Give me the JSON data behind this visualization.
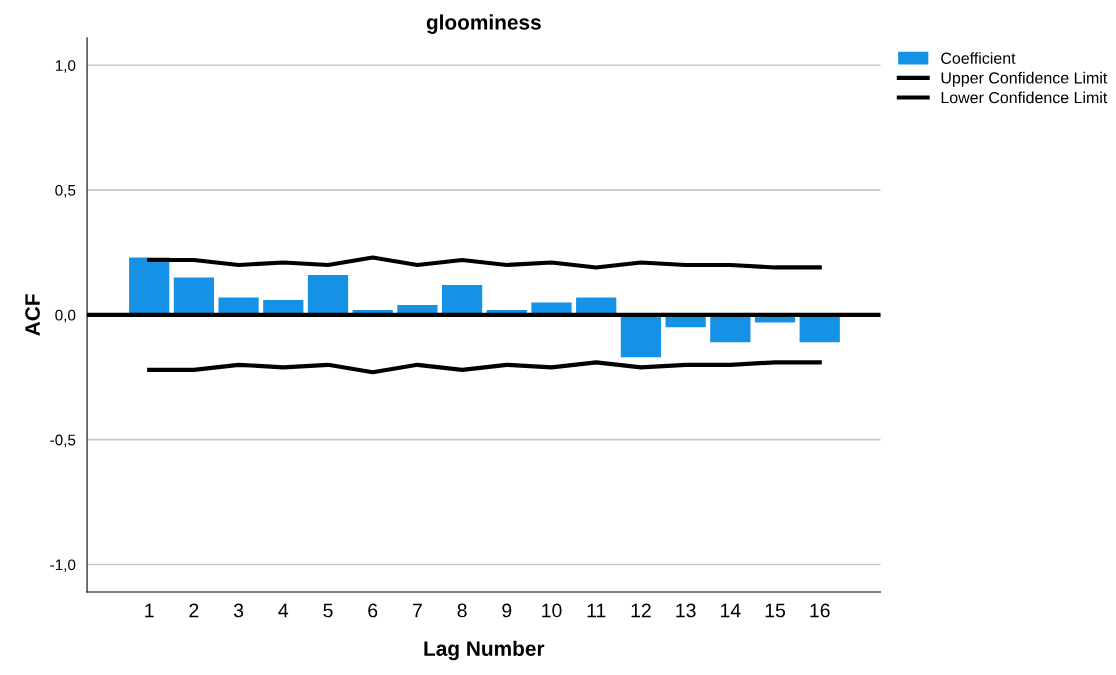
{
  "chart_data": {
    "type": "bar",
    "title": "gloominess",
    "xlabel": "Lag Number",
    "ylabel": "ACF",
    "categories": [
      "1",
      "2",
      "3",
      "4",
      "5",
      "6",
      "7",
      "8",
      "9",
      "10",
      "11",
      "12",
      "13",
      "14",
      "15",
      "16"
    ],
    "series": [
      {
        "name": "Coefficient",
        "color": "#1591e6",
        "values": [
          0.23,
          0.15,
          0.07,
          0.06,
          0.16,
          0.02,
          0.04,
          0.12,
          0.02,
          0.05,
          0.07,
          -0.17,
          -0.05,
          -0.11,
          -0.03,
          -0.11
        ]
      },
      {
        "name": "Upper Confidence Limit",
        "type": "line",
        "color": "#000000",
        "values": [
          0.22,
          0.22,
          0.2,
          0.21,
          0.2,
          0.23,
          0.2,
          0.22,
          0.2,
          0.21,
          0.19,
          0.21,
          0.2,
          0.2,
          0.19,
          0.19
        ]
      },
      {
        "name": "Lower Confidence Limit",
        "type": "line",
        "color": "#000000",
        "values": [
          -0.22,
          -0.22,
          -0.2,
          -0.21,
          -0.2,
          -0.23,
          -0.2,
          -0.22,
          -0.2,
          -0.21,
          -0.19,
          -0.21,
          -0.2,
          -0.2,
          -0.19,
          -0.19
        ]
      }
    ],
    "ylim": [
      -1.11,
      1.11
    ],
    "yticks": [
      {
        "value": -1.0,
        "label": "-1,0"
      },
      {
        "value": -0.5,
        "label": "-0,5"
      },
      {
        "value": 0.0,
        "label": "0,0"
      },
      {
        "value": 0.5,
        "label": "0,5"
      },
      {
        "value": 1.0,
        "label": "1,0"
      }
    ],
    "ref_lines": [
      {
        "axis": "y",
        "value": 0,
        "color": "#000000"
      }
    ],
    "grid": "y",
    "legend": "top right",
    "marker": "none",
    "line_style": "solid"
  }
}
